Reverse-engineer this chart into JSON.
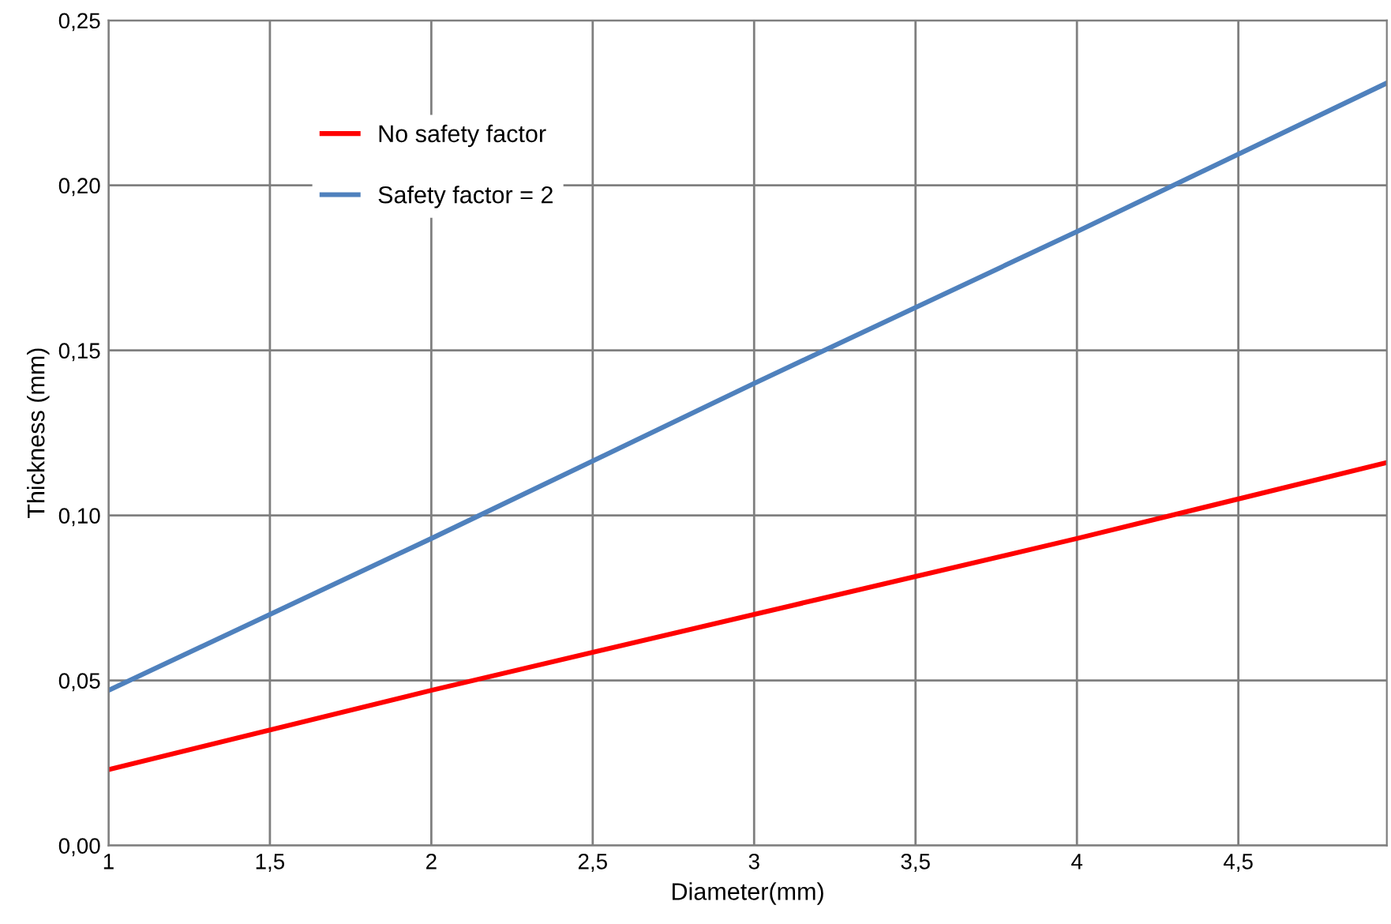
{
  "chart_data": {
    "type": "line",
    "xlabel": "Diameter(mm)",
    "ylabel": "Thickness (mm)",
    "x": [
      1,
      2,
      3,
      4,
      4.96
    ],
    "series": [
      {
        "name": "No safety factor",
        "color": "#ff0000",
        "values": [
          0.023,
          0.047,
          0.07,
          0.093,
          0.116
        ]
      },
      {
        "name": "Safety factor = 2",
        "color": "#4f81bd",
        "values": [
          0.047,
          0.093,
          0.14,
          0.186,
          0.231
        ]
      }
    ],
    "xlim": [
      1,
      4.96
    ],
    "ylim": [
      0,
      0.25
    ],
    "xticks": [
      1,
      {
        "value": 1.5,
        "label": "1,5"
      },
      2,
      {
        "value": 2.5,
        "label": "2,5"
      },
      3,
      {
        "value": 3.5,
        "label": "3,5"
      },
      4,
      {
        "value": 4.5,
        "label": "4,5"
      }
    ],
    "yticks": [
      {
        "value": 0,
        "label": "0,00"
      },
      {
        "value": 0.05,
        "label": "0,05"
      },
      {
        "value": 0.1,
        "label": "0,10"
      },
      {
        "value": 0.15,
        "label": "0,15"
      },
      {
        "value": 0.2,
        "label": "0,20"
      },
      {
        "value": 0.25,
        "label": "0,25"
      }
    ],
    "grid": true,
    "legend": "top left",
    "marker": "none",
    "line_style": "solid"
  }
}
